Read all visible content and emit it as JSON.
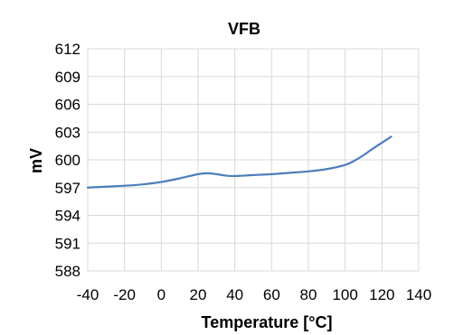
{
  "chart_data": {
    "type": "line",
    "title": "VFB",
    "xlabel": "Temperature [°C]",
    "ylabel": "mV",
    "xlim": [
      -40,
      140
    ],
    "ylim": [
      588,
      612
    ],
    "x_ticks": [
      "-40",
      "-20",
      "0",
      "20",
      "40",
      "60",
      "80",
      "100",
      "120",
      "140"
    ],
    "y_ticks": [
      "588",
      "591",
      "594",
      "597",
      "600",
      "603",
      "606",
      "609",
      "612"
    ],
    "grid": true,
    "legend": "none",
    "series": [
      {
        "color": "#4a7ebb",
        "x": [
          -40,
          -30,
          -20,
          -10,
          0,
          10,
          20,
          25,
          30,
          35,
          40,
          50,
          60,
          70,
          80,
          90,
          100,
          105,
          110,
          115,
          120,
          125
        ],
        "y": [
          597.0,
          597.1,
          597.2,
          597.35,
          597.6,
          598.0,
          598.45,
          598.55,
          598.45,
          598.3,
          598.25,
          598.35,
          598.45,
          598.6,
          598.75,
          599.0,
          599.45,
          599.9,
          600.5,
          601.2,
          601.85,
          602.5
        ]
      }
    ]
  }
}
